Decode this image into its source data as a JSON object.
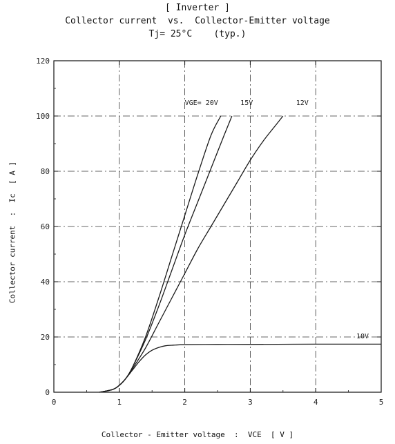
{
  "chart_data": {
    "type": "line",
    "title_lines": [
      "[ Inverter ]",
      "Collector current  vs.  Collector-Emitter voltage",
      "Tj= 25°C    (typ.)"
    ],
    "xlabel": "Collector - Emitter voltage  :  VCE  [ V ]",
    "ylabel": "Collector current  :  Ic  [ A ]",
    "xlim": [
      0,
      5
    ],
    "ylim": [
      0,
      120
    ],
    "x_ticks": [
      0,
      1,
      2,
      3,
      4,
      5
    ],
    "x_tick_labels": [
      "0",
      "1",
      "2",
      "3",
      "4",
      "5"
    ],
    "y_ticks": [
      0,
      20,
      40,
      60,
      80,
      100,
      120
    ],
    "y_tick_labels": [
      "0",
      "20",
      "40",
      "60",
      "80",
      "100",
      "120"
    ],
    "grid": true,
    "series": [
      {
        "name": "VGE= 20V",
        "x": [
          0.7,
          0.9,
          1.0,
          1.1,
          1.2,
          1.4,
          1.6,
          1.8,
          2.0,
          2.2,
          2.4,
          2.55
        ],
        "y": [
          0,
          1,
          2.5,
          5,
          9,
          20,
          34,
          49,
          64,
          79,
          93,
          100
        ]
      },
      {
        "name": "15V",
        "x": [
          0.7,
          0.9,
          1.0,
          1.1,
          1.2,
          1.4,
          1.6,
          1.8,
          2.0,
          2.2,
          2.4,
          2.6,
          2.72
        ],
        "y": [
          0,
          1,
          2.5,
          5,
          9,
          19,
          31,
          44,
          57,
          69,
          81,
          93,
          100
        ]
      },
      {
        "name": "12V",
        "x": [
          0.7,
          0.9,
          1.0,
          1.1,
          1.2,
          1.4,
          1.6,
          1.8,
          2.0,
          2.2,
          2.4,
          2.6,
          2.8,
          3.0,
          3.2,
          3.4,
          3.5
        ],
        "y": [
          0,
          1,
          2.5,
          5,
          8.5,
          16,
          25,
          34,
          43,
          52,
          60,
          68,
          76,
          84,
          91,
          97,
          100
        ]
      },
      {
        "name": "10V",
        "x": [
          0.7,
          0.9,
          1.0,
          1.1,
          1.2,
          1.3,
          1.4,
          1.5,
          1.6,
          1.7,
          1.8,
          2.0,
          2.5,
          3.0,
          4.0,
          5.0
        ],
        "y": [
          0,
          1,
          2.5,
          5,
          8,
          11,
          13.5,
          15.2,
          16.2,
          16.8,
          17.0,
          17.2,
          17.3,
          17.3,
          17.4,
          17.4
        ]
      }
    ],
    "curve_labels": [
      {
        "text": "VGE= 20V",
        "x": 2.0,
        "y": 104
      },
      {
        "text": "15V",
        "x": 2.85,
        "y": 104
      },
      {
        "text": "12V",
        "x": 3.7,
        "y": 104
      },
      {
        "text": "10V",
        "x": 4.62,
        "y": 19.5
      }
    ],
    "style": {
      "line_color": "#1a1a1a",
      "grid_color": "#333333"
    }
  }
}
